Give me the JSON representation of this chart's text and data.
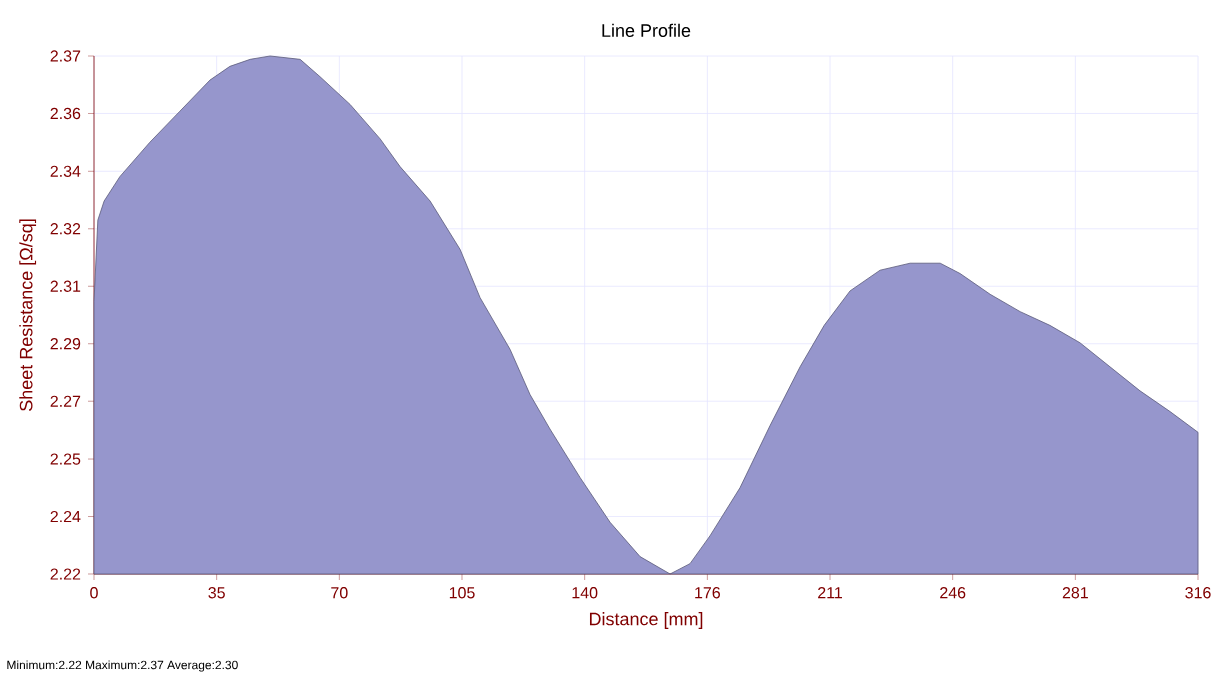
{
  "chart_data": {
    "type": "area",
    "title": "Line Profile",
    "xlabel": "Distance [mm]",
    "ylabel": "Sheet Resistance [Ω/sq]",
    "annotations": [
      "Minimum:2.22  Maximum:2.37  Average:2.30"
    ],
    "xlim": [
      0,
      316
    ],
    "ylim": [
      2.2195,
      2.3745
    ],
    "xticks": [
      0,
      {
        "value": 35.11,
        "label": "35"
      },
      {
        "value": 70.22,
        "label": "70"
      },
      {
        "value": 105.33,
        "label": "105"
      },
      {
        "value": 140.44,
        "label": "140"
      },
      {
        "value": 175.56,
        "label": "176"
      },
      {
        "value": 210.67,
        "label": "211"
      },
      {
        "value": 245.78,
        "label": "246"
      },
      {
        "value": 280.89,
        "label": "281"
      },
      316
    ],
    "yticks": [
      {
        "value": 2.2195,
        "label": "2.22"
      },
      {
        "value": 2.2367,
        "label": "2.24"
      },
      {
        "value": 2.2539,
        "label": "2.25"
      },
      {
        "value": 2.2712,
        "label": "2.27"
      },
      {
        "value": 2.2884,
        "label": "2.29"
      },
      {
        "value": 2.3056,
        "label": "2.31"
      },
      {
        "value": 2.3228,
        "label": "2.32"
      },
      {
        "value": 2.34,
        "label": "2.34"
      },
      {
        "value": 2.3573,
        "label": "2.36"
      },
      {
        "value": 2.3745,
        "label": "2.37"
      }
    ],
    "grid": true,
    "series": [
      {
        "color": "#9696cc",
        "x": [
          0,
          1.1,
          2.9,
          7.4,
          16.0,
          24.6,
          33.2,
          38.9,
          44.7,
          50.4,
          59.0,
          64.7,
          73.3,
          81.9,
          87.6,
          96.2,
          104.8,
          110.5,
          119.1,
          124.8,
          130.5,
          139.1,
          147.7,
          156.3,
          164.9,
          170.6,
          176.3,
          184.9,
          193.5,
          202.1,
          209.0,
          216.4,
          225.0,
          233.6,
          242.2,
          247.9,
          256.5,
          265.1,
          273.6,
          282.2,
          290.8,
          299.4,
          308.0,
          316
        ],
        "values": [
          2.3011,
          2.3254,
          2.3311,
          2.3384,
          2.3487,
          2.358,
          2.3673,
          2.3714,
          2.3735,
          2.3745,
          2.3735,
          2.3683,
          2.36,
          2.3497,
          2.3414,
          2.3311,
          2.3166,
          2.3022,
          2.2867,
          2.2732,
          2.2629,
          2.2484,
          2.235,
          2.2247,
          2.2195,
          2.2226,
          2.2309,
          2.2453,
          2.2639,
          2.2815,
          2.2939,
          2.3042,
          2.3104,
          2.3125,
          2.3125,
          2.3094,
          2.3032,
          2.298,
          2.2939,
          2.2887,
          2.2815,
          2.2743,
          2.2681,
          2.2619
        ]
      }
    ]
  }
}
